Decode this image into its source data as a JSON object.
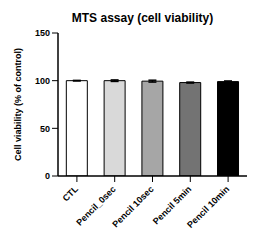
{
  "chart_data": {
    "type": "bar",
    "title": "MTS assay (cell viability)",
    "y_label": "Cell viability (% of control)",
    "categories": [
      "CTL",
      "Pencil_0sec",
      "Pencil 10sec",
      "Pencil 5min",
      "Pencil 10min"
    ],
    "values": [
      100,
      100,
      99.5,
      98,
      99
    ],
    "errors": [
      0.3,
      0.8,
      1,
      0.5,
      0.7
    ],
    "colors": [
      "#ffffff",
      "#d9d9d9",
      "#a6a6a6",
      "#737373",
      "#000000"
    ],
    "ylim": [
      0,
      150
    ],
    "yticks": [
      0,
      50,
      100,
      150
    ],
    "grid": false
  }
}
